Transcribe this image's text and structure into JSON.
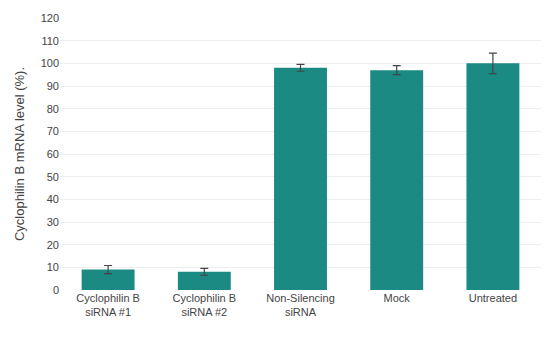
{
  "chart_data": {
    "type": "bar",
    "categories": [
      "Cyclophilin B\nsiRNA #1",
      "Cyclophilin B\nsiRNA #2",
      "Non-Silencing\nsiRNA",
      "Mock",
      "Untreated"
    ],
    "values": [
      9.0,
      8.0,
      98.0,
      97.0,
      100.0
    ],
    "errors": [
      1.8,
      1.5,
      1.5,
      2.0,
      4.5
    ],
    "color": "#1a8a82",
    "ylabel": "Cyclophilin B mRNA level (%).",
    "ylim": [
      0,
      120
    ],
    "yticks": [
      0,
      10,
      20,
      30,
      40,
      50,
      60,
      70,
      80,
      90,
      100,
      110,
      120
    ],
    "grid": true
  }
}
